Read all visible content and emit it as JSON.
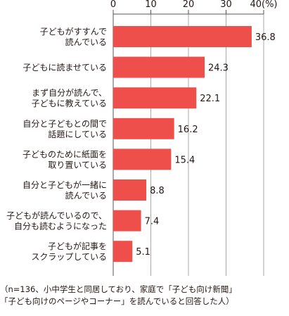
{
  "chart_data": {
    "type": "bar",
    "orientation": "horizontal",
    "categories": [
      [
        "子どもがすすんで",
        "読んでいる"
      ],
      [
        "子どもに読ませている"
      ],
      [
        "まず自分が読んで、",
        "子どもに教えている"
      ],
      [
        "自分と子どもとの間で",
        "話題にしている"
      ],
      [
        "子どものために紙面を",
        "取り置いている"
      ],
      [
        "自分と子どもが一緒に",
        "読んでいる"
      ],
      [
        "子どもが読んでいるので、",
        "自分も読むようになった"
      ],
      [
        "子どもが記事を",
        "スクラップしている"
      ]
    ],
    "values": [
      36.8,
      24.3,
      22.1,
      16.2,
      15.4,
      8.8,
      7.4,
      5.1
    ],
    "value_labels": [
      "36.8",
      "24.3",
      "22.1",
      "16.2",
      "15.4",
      "8.8",
      "7.4",
      "5.1"
    ],
    "xlim": [
      0,
      40
    ],
    "ticks": [
      0,
      10,
      20,
      30,
      40
    ],
    "tick_labels": [
      "0",
      "10",
      "20",
      "30",
      "40(%)"
    ],
    "grid": true,
    "bar_color": "#ee4f4a",
    "grid_color": "#aaaaaa"
  },
  "note": {
    "line1": "（n=136、小中学生と同居しており、家庭で「子ども向け新聞」",
    "line2": "「子ども向けのページやコーナー」を読んでいると回答した人）"
  }
}
